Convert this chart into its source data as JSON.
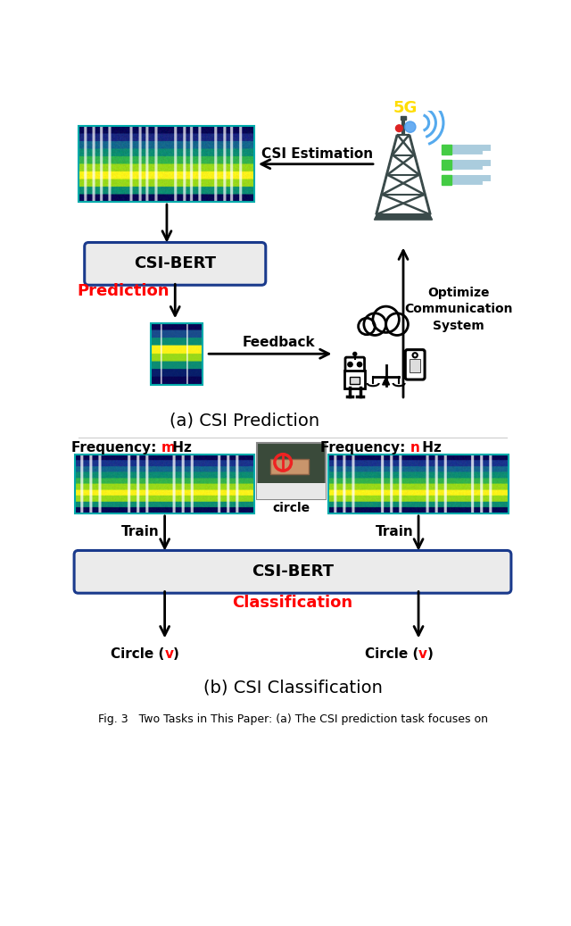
{
  "title_a": "(a) CSI Prediction",
  "title_b": "(b) CSI Classification",
  "csi_bert_label": "CSI-BERT",
  "prediction_label": "Prediction",
  "classification_label": "Classification",
  "csi_estimation_label": "CSI Estimation",
  "optimize_label": "Optimize\nCommunication\nSystem",
  "feedback_label": "Feedback",
  "train_label": "Train",
  "circle_label": "circle",
  "bg_color": "#ffffff",
  "box_bg": "#ebebeb",
  "box_border": "#1a3a8c",
  "red_color": "#ff0000",
  "fig_caption": "Fig. 3   Two Tasks in This Paper: (a) The CSI prediction task focuses on"
}
